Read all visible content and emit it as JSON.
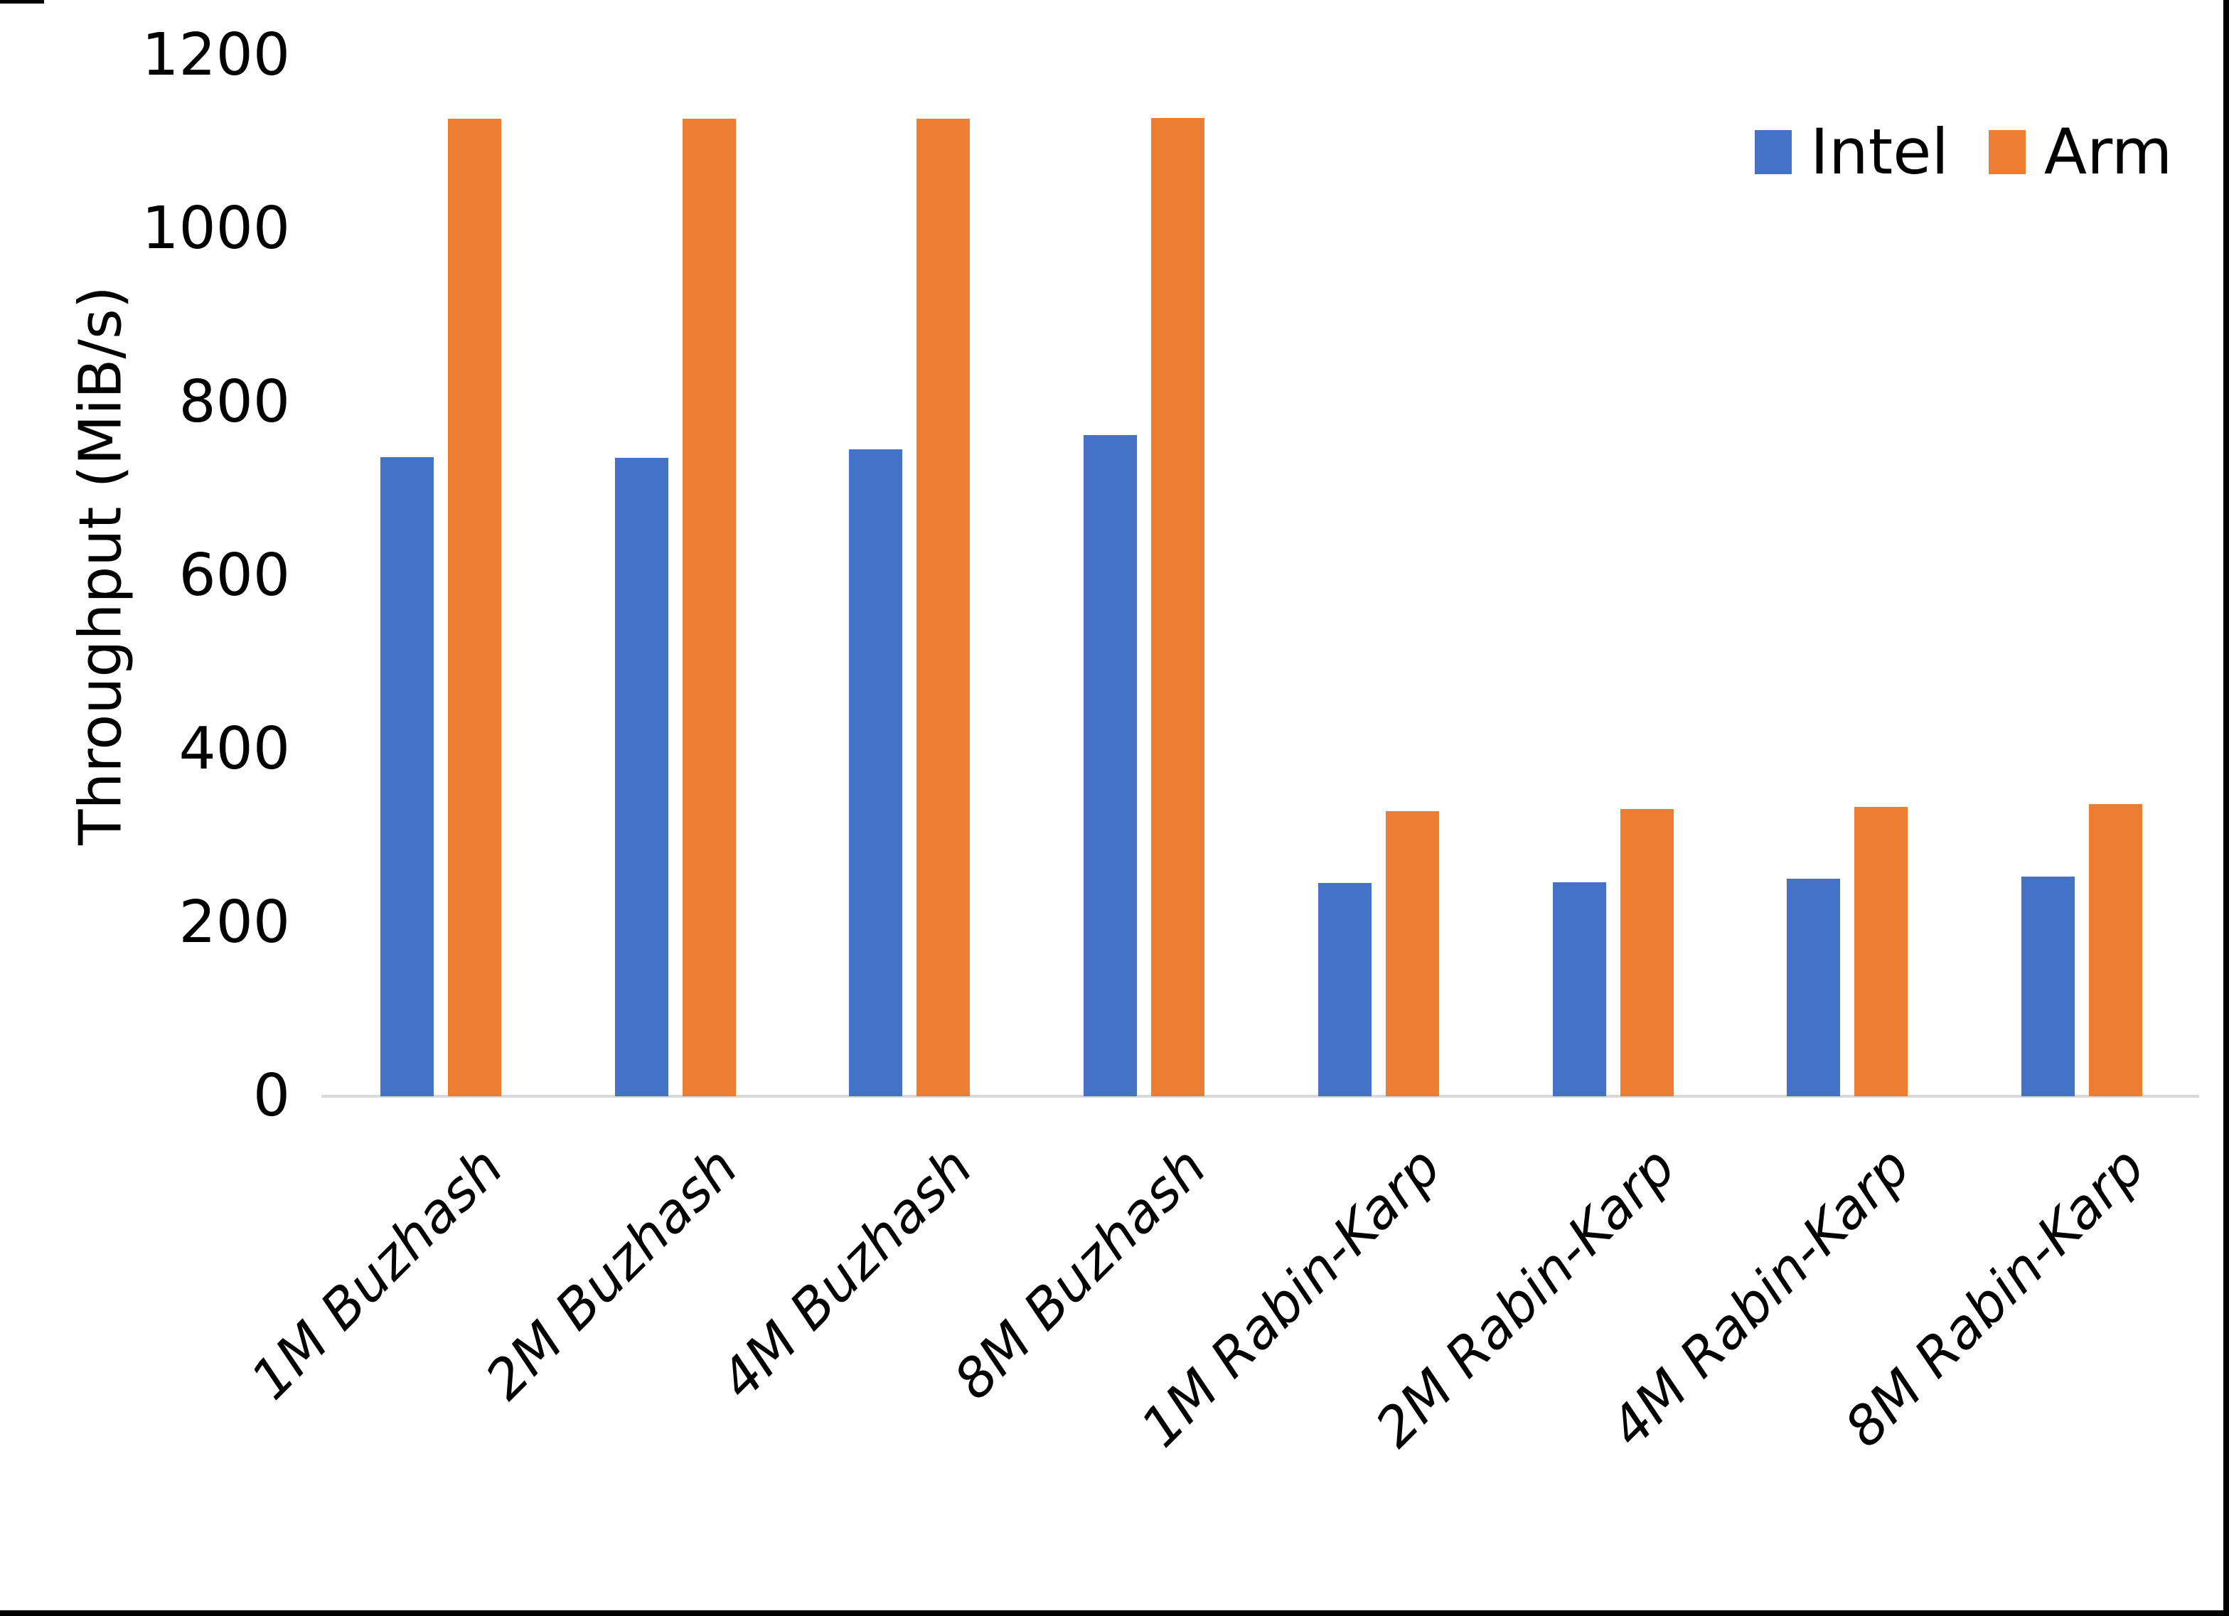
{
  "chart_data": {
    "type": "bar",
    "title": "",
    "xlabel": "",
    "ylabel": "Throughput (MiB/s)",
    "categories": [
      "1M Buzhash",
      "2M Buzhash",
      "4M Buzhash",
      "8M Buzhash",
      "1M Rabin-Karp",
      "2M Rabin-Karp",
      "4M Rabin-Karp",
      "8M Rabin-Karp"
    ],
    "series": [
      {
        "name": "Intel",
        "color": "#4472C4",
        "values": [
          737,
          736,
          746,
          762,
          246,
          247,
          251,
          253
        ]
      },
      {
        "name": "Arm",
        "color": "#ED7D31",
        "values": [
          1127,
          1127,
          1127,
          1128,
          329,
          331,
          334,
          337
        ]
      }
    ],
    "ylim": [
      0,
      1200
    ],
    "yticks": [
      0,
      200,
      400,
      600,
      800,
      1000,
      1200
    ],
    "grid": false,
    "legend_position": "top-right",
    "axis_line_color": "#D9D9D9",
    "text_color": "#000000"
  }
}
